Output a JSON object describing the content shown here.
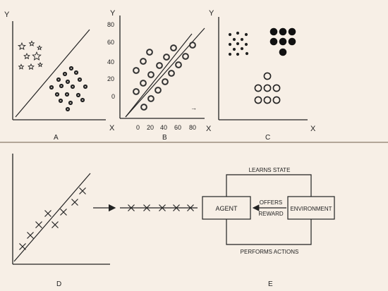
{
  "panels": {
    "a": {
      "caption": "A",
      "x_label": "X",
      "y_label": "Y"
    },
    "b": {
      "caption": "B",
      "x_label": "X",
      "y_label": "Y",
      "x_ticks": [
        "0",
        "20",
        "40",
        "60",
        "80"
      ],
      "y_ticks": [
        "80",
        "60",
        "40",
        "20",
        "0"
      ],
      "arrow_glyph": "→"
    },
    "c": {
      "caption": "C",
      "x_label": "X",
      "y_label": "Y"
    },
    "d": {
      "caption": "D"
    },
    "e": {
      "caption": "E",
      "agent": "AGENT",
      "environment": "ENVIRONMENT",
      "learns_state": "LEARNS STATE",
      "offers": "OFFERS",
      "reward": "REWARD",
      "performs_actions": "PERFORMS ACTIONS"
    }
  },
  "colors": {
    "background": "#f7efe6",
    "ink": "#222222"
  },
  "icons": [
    "star-icon",
    "filled-dot-icon",
    "ring-icon",
    "cross-mark-icon",
    "arrow-icon"
  ]
}
